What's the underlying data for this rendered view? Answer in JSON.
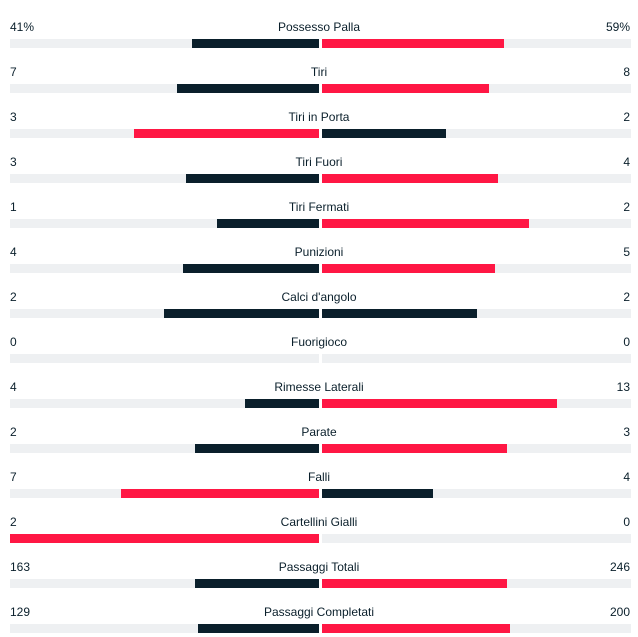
{
  "colors": {
    "leading": "#ff1744",
    "trailing": "#0a1f2b",
    "track": "#eef0f2"
  },
  "stats": [
    {
      "name": "Possesso Palla",
      "home": "41%",
      "away": "59%",
      "home_value": 41,
      "away_value": 59,
      "home_ratio": 0.41,
      "away_ratio": 0.59
    },
    {
      "name": "Tiri",
      "home": "7",
      "away": "8",
      "home_value": 7,
      "away_value": 8,
      "home_ratio": 0.46,
      "away_ratio": 0.54
    },
    {
      "name": "Tiri in Porta",
      "home": "3",
      "away": "2",
      "home_value": 3,
      "away_value": 2,
      "home_ratio": 0.6,
      "away_ratio": 0.4
    },
    {
      "name": "Tiri Fuori",
      "home": "3",
      "away": "4",
      "home_value": 3,
      "away_value": 4,
      "home_ratio": 0.43,
      "away_ratio": 0.57
    },
    {
      "name": "Tiri Fermati",
      "home": "1",
      "away": "2",
      "home_value": 1,
      "away_value": 2,
      "home_ratio": 0.33,
      "away_ratio": 0.67
    },
    {
      "name": "Punizioni",
      "home": "4",
      "away": "5",
      "home_value": 4,
      "away_value": 5,
      "home_ratio": 0.44,
      "away_ratio": 0.56
    },
    {
      "name": "Calci d'angolo",
      "home": "2",
      "away": "2",
      "home_value": 2,
      "away_value": 2,
      "home_ratio": 0.5,
      "away_ratio": 0.5
    },
    {
      "name": "Fuorigioco",
      "home": "0",
      "away": "0",
      "home_value": 0,
      "away_value": 0,
      "home_ratio": 0,
      "away_ratio": 0
    },
    {
      "name": "Rimesse Laterali",
      "home": "4",
      "away": "13",
      "home_value": 4,
      "away_value": 13,
      "home_ratio": 0.24,
      "away_ratio": 0.76
    },
    {
      "name": "Parate",
      "home": "2",
      "away": "3",
      "home_value": 2,
      "away_value": 3,
      "home_ratio": 0.4,
      "away_ratio": 0.6
    },
    {
      "name": "Falli",
      "home": "7",
      "away": "4",
      "home_value": 7,
      "away_value": 4,
      "home_ratio": 0.64,
      "away_ratio": 0.36
    },
    {
      "name": "Cartellini Gialli",
      "home": "2",
      "away": "0",
      "home_value": 2,
      "away_value": 0,
      "home_ratio": 1,
      "away_ratio": 0
    },
    {
      "name": "Passaggi Totali",
      "home": "163",
      "away": "246",
      "home_value": 163,
      "away_value": 246,
      "home_ratio": 0.4,
      "away_ratio": 0.6
    },
    {
      "name": "Passaggi Completati",
      "home": "129",
      "away": "200",
      "home_value": 129,
      "away_value": 200,
      "home_ratio": 0.39,
      "away_ratio": 0.61
    }
  ]
}
